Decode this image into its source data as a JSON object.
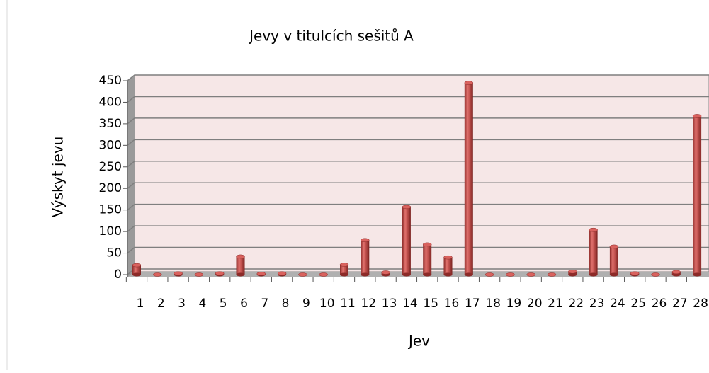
{
  "chart_data": {
    "type": "bar",
    "title": "Jevy v titulcích sešitů A",
    "x_label": "Jev",
    "y_label": "Výskyt jevu",
    "categories": [
      "1",
      "2",
      "3",
      "4",
      "5",
      "6",
      "7",
      "8",
      "9",
      "10",
      "11",
      "12",
      "13",
      "14",
      "15",
      "16",
      "17",
      "18",
      "19",
      "20",
      "21",
      "22",
      "23",
      "24",
      "25",
      "26",
      "27",
      "28"
    ],
    "values": [
      22,
      0,
      3,
      0,
      3,
      42,
      2,
      3,
      0,
      0,
      23,
      80,
      5,
      157,
      70,
      40,
      445,
      0,
      0,
      0,
      0,
      7,
      104,
      65,
      3,
      0,
      6,
      368
    ],
    "color": "#c0504d",
    "ylim": [
      0,
      450
    ],
    "yticks": [
      0,
      50,
      100,
      150,
      200,
      250,
      300,
      350,
      400,
      450
    ],
    "grid": true
  }
}
